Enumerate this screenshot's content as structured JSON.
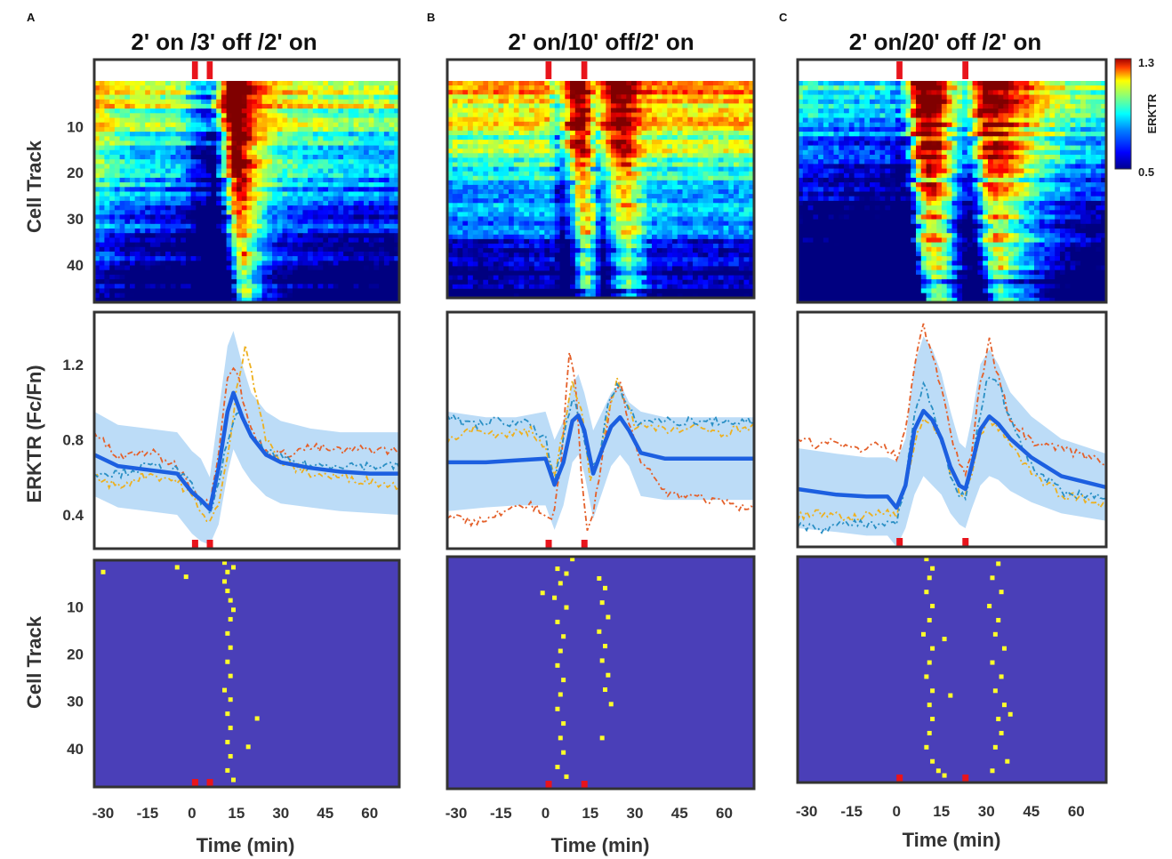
{
  "panel_letters": [
    "A",
    "B",
    "C"
  ],
  "colorbar": {
    "max_label": "1.3",
    "min_label": "0.5",
    "label": "ERKTR",
    "range": [
      0.5,
      1.3
    ]
  },
  "colors": {
    "pulse": "#e8141c",
    "mean": "#1c5fe0",
    "band": "#bcdcf7",
    "raster_bg": "#4a3fb8",
    "event": "#ffff2a",
    "trace_orange": "#e4602a",
    "trace_yellow": "#edb01f",
    "trace_blue": "#2a8fc4"
  },
  "y_labels": {
    "heatmap": "Cell Track",
    "mean": "ERKTR (Fc/Fn)",
    "raster": "Cell Track"
  },
  "x_label": "Time (min)",
  "x_tick_labels": [
    "-30",
    "-15",
    "0",
    "15",
    "30",
    "45",
    "60"
  ],
  "cell_tick_labels": [
    "10",
    "20",
    "30",
    "40"
  ],
  "erk_tick_labels": [
    "0.4",
    "0.8",
    "1.2"
  ],
  "chart_data": [
    {
      "type": "heatmap",
      "panel": "A",
      "title": "2' on /3' off /2' on",
      "xlim": [
        -33,
        70
      ],
      "cells_ylim": [
        0.5,
        48.5
      ],
      "erk_ylim": [
        0.22,
        1.48
      ],
      "pulses_min": [
        [
          0,
          2
        ],
        [
          5,
          7
        ]
      ],
      "heatmap": {
        "ylabel": "Cell Track",
        "n_cells": 48,
        "colorbar_range": [
          0.5,
          1.3
        ]
      },
      "mean_trace": {
        "ylabel": "ERKTR (Fc/Fn)",
        "x": [
          -33,
          -25,
          -15,
          -5,
          0,
          3,
          6,
          9,
          12,
          14,
          17,
          20,
          25,
          30,
          40,
          50,
          60,
          70
        ],
        "mean": [
          0.72,
          0.66,
          0.64,
          0.62,
          0.52,
          0.48,
          0.43,
          0.65,
          0.95,
          1.05,
          0.92,
          0.82,
          0.72,
          0.68,
          0.65,
          0.63,
          0.62,
          0.62
        ],
        "band_upper": [
          0.95,
          0.88,
          0.86,
          0.84,
          0.74,
          0.7,
          0.6,
          0.95,
          1.3,
          1.38,
          1.2,
          1.05,
          0.95,
          0.9,
          0.86,
          0.84,
          0.84,
          0.84
        ],
        "band_lower": [
          0.5,
          0.44,
          0.42,
          0.4,
          0.3,
          0.26,
          0.24,
          0.35,
          0.62,
          0.75,
          0.65,
          0.58,
          0.5,
          0.46,
          0.44,
          0.42,
          0.41,
          0.4
        ],
        "cell_traces": [
          {
            "color": "orange",
            "x": [
              -33,
              -25,
              -15,
              -5,
              0,
              3,
              6,
              9,
              12,
              15,
              18,
              21,
              25,
              30,
              40,
              50,
              60,
              70
            ],
            "y": [
              0.84,
              0.7,
              0.74,
              0.66,
              0.55,
              0.48,
              0.45,
              0.75,
              1.15,
              1.18,
              0.95,
              0.82,
              0.74,
              0.72,
              0.76,
              0.74,
              0.75,
              0.74
            ]
          },
          {
            "color": "yellow",
            "x": [
              -33,
              -25,
              -15,
              -5,
              0,
              3,
              6,
              9,
              12,
              15,
              18,
              21,
              25,
              30,
              40,
              50,
              60,
              70
            ],
            "y": [
              0.6,
              0.55,
              0.62,
              0.58,
              0.5,
              0.4,
              0.38,
              0.45,
              0.7,
              1.05,
              1.32,
              1.1,
              0.8,
              0.68,
              0.62,
              0.6,
              0.58,
              0.55
            ]
          },
          {
            "color": "blue",
            "x": [
              -33,
              -25,
              -15,
              -5,
              0,
              3,
              6,
              9,
              12,
              15,
              18,
              21,
              25,
              30,
              40,
              50,
              60,
              70
            ],
            "y": [
              0.63,
              0.62,
              0.66,
              0.64,
              0.55,
              0.47,
              0.43,
              0.55,
              0.8,
              0.95,
              0.88,
              0.8,
              0.74,
              0.7,
              0.66,
              0.67,
              0.66,
              0.66
            ]
          }
        ]
      },
      "raster": {
        "ylabel": "Cell Track",
        "events": [
          [
            -30,
            3
          ],
          [
            -5,
            2
          ],
          [
            -2,
            4
          ],
          [
            11,
            1
          ],
          [
            12,
            3
          ],
          [
            11,
            5
          ],
          [
            12,
            7
          ],
          [
            13,
            9
          ],
          [
            14,
            11
          ],
          [
            13,
            13
          ],
          [
            12,
            16
          ],
          [
            13,
            19
          ],
          [
            12,
            22
          ],
          [
            13,
            25
          ],
          [
            11,
            28
          ],
          [
            13,
            30
          ],
          [
            12,
            33
          ],
          [
            13,
            36
          ],
          [
            12,
            39
          ],
          [
            13,
            42
          ],
          [
            12,
            45
          ],
          [
            14,
            47
          ],
          [
            22,
            34
          ],
          [
            19,
            40
          ],
          [
            14,
            2
          ]
        ]
      }
    },
    {
      "type": "heatmap",
      "panel": "B",
      "title": "2' on/10' off/2' on",
      "xlim": [
        -33,
        70
      ],
      "cells_ylim": [
        0.5,
        48.5
      ],
      "erk_ylim": [
        0.22,
        1.48
      ],
      "pulses_min": [
        [
          0,
          2
        ],
        [
          12,
          14
        ]
      ],
      "heatmap": {
        "ylabel": "Cell Track",
        "n_cells": 48,
        "colorbar_range": [
          0.5,
          1.3
        ]
      },
      "mean_trace": {
        "ylabel": "ERKTR (Fc/Fn)",
        "x": [
          -33,
          -20,
          -10,
          0,
          3,
          6,
          9,
          11,
          13,
          16,
          19,
          22,
          25,
          28,
          32,
          40,
          50,
          60,
          70
        ],
        "mean": [
          0.68,
          0.68,
          0.69,
          0.7,
          0.56,
          0.68,
          0.9,
          0.93,
          0.85,
          0.62,
          0.75,
          0.87,
          0.92,
          0.85,
          0.73,
          0.7,
          0.7,
          0.7,
          0.7
        ],
        "band_upper": [
          0.95,
          0.92,
          0.92,
          0.95,
          0.8,
          0.9,
          1.1,
          1.15,
          1.05,
          0.85,
          0.95,
          1.05,
          1.1,
          1.0,
          0.95,
          0.92,
          0.92,
          0.92,
          0.92
        ],
        "band_lower": [
          0.42,
          0.44,
          0.45,
          0.45,
          0.32,
          0.45,
          0.68,
          0.72,
          0.62,
          0.38,
          0.52,
          0.66,
          0.72,
          0.66,
          0.5,
          0.48,
          0.48,
          0.48,
          0.48
        ],
        "cell_traces": [
          {
            "color": "orange",
            "x": [
              -33,
              -25,
              -15,
              -5,
              0,
              2,
              5,
              8,
              10,
              12,
              14,
              16,
              19,
              22,
              25,
              28,
              32,
              40,
              50,
              60,
              70
            ],
            "y": [
              0.4,
              0.36,
              0.42,
              0.45,
              0.4,
              0.36,
              0.62,
              1.28,
              1.1,
              0.62,
              0.3,
              0.4,
              0.7,
              1.0,
              1.1,
              0.9,
              0.7,
              0.52,
              0.5,
              0.46,
              0.42
            ]
          },
          {
            "color": "yellow",
            "x": [
              -33,
              -25,
              -15,
              -5,
              0,
              3,
              6,
              9,
              12,
              15,
              18,
              21,
              24,
              27,
              30,
              40,
              50,
              60,
              70
            ],
            "y": [
              0.8,
              0.86,
              0.82,
              0.85,
              0.75,
              0.6,
              0.85,
              1.1,
              0.95,
              0.6,
              0.7,
              0.95,
              1.12,
              1.0,
              0.88,
              0.85,
              0.86,
              0.84,
              0.88
            ]
          },
          {
            "color": "blue",
            "x": [
              -33,
              -25,
              -15,
              -5,
              0,
              3,
              6,
              9,
              12,
              15,
              18,
              21,
              24,
              27,
              30,
              40,
              50,
              60,
              70
            ],
            "y": [
              0.92,
              0.88,
              0.9,
              0.88,
              0.8,
              0.58,
              0.82,
              1.02,
              0.9,
              0.65,
              0.72,
              0.98,
              1.08,
              1.0,
              0.9,
              0.9,
              0.9,
              0.9,
              0.9
            ]
          }
        ]
      },
      "raster": {
        "ylabel": "Cell Track",
        "events": [
          [
            -1,
            8
          ],
          [
            4,
            3
          ],
          [
            7,
            4
          ],
          [
            5,
            6
          ],
          [
            3,
            9
          ],
          [
            7,
            11
          ],
          [
            4,
            14
          ],
          [
            6,
            17
          ],
          [
            5,
            20
          ],
          [
            4,
            23
          ],
          [
            6,
            26
          ],
          [
            5,
            29
          ],
          [
            4,
            32
          ],
          [
            6,
            35
          ],
          [
            5,
            38
          ],
          [
            6,
            41
          ],
          [
            4,
            44
          ],
          [
            7,
            46
          ],
          [
            18,
            5
          ],
          [
            20,
            7
          ],
          [
            19,
            10
          ],
          [
            21,
            13
          ],
          [
            18,
            16
          ],
          [
            20,
            19
          ],
          [
            19,
            22
          ],
          [
            21,
            25
          ],
          [
            20,
            28
          ],
          [
            22,
            31
          ],
          [
            19,
            38
          ],
          [
            9,
            1
          ]
        ]
      }
    },
    {
      "type": "heatmap",
      "panel": "C",
      "title": "2' on/20' off /2' on",
      "xlim": [
        -33,
        70
      ],
      "cells_ylim": [
        0.5,
        48.5
      ],
      "erk_ylim": [
        0.22,
        1.48
      ],
      "pulses_min": [
        [
          0,
          2
        ],
        [
          22,
          24
        ]
      ],
      "heatmap": {
        "ylabel": "Cell Track",
        "n_cells": 48,
        "colorbar_range": [
          0.5,
          1.3
        ]
      },
      "mean_trace": {
        "ylabel": "ERKTR (Fc/Fn)",
        "x": [
          -33,
          -20,
          -10,
          -3,
          0,
          3,
          6,
          9,
          12,
          15,
          18,
          21,
          23,
          25,
          28,
          31,
          34,
          38,
          45,
          55,
          70
        ],
        "mean": [
          0.53,
          0.5,
          0.49,
          0.49,
          0.43,
          0.55,
          0.85,
          0.95,
          0.9,
          0.8,
          0.65,
          0.55,
          0.53,
          0.65,
          0.85,
          0.92,
          0.88,
          0.8,
          0.7,
          0.6,
          0.54
        ],
        "band_upper": [
          0.75,
          0.72,
          0.7,
          0.7,
          0.68,
          0.8,
          1.2,
          1.35,
          1.28,
          1.15,
          0.95,
          0.78,
          0.75,
          0.9,
          1.2,
          1.28,
          1.2,
          1.05,
          0.92,
          0.8,
          0.72
        ],
        "band_lower": [
          0.32,
          0.3,
          0.28,
          0.28,
          0.22,
          0.32,
          0.5,
          0.6,
          0.55,
          0.5,
          0.4,
          0.34,
          0.32,
          0.42,
          0.55,
          0.6,
          0.58,
          0.52,
          0.46,
          0.4,
          0.36
        ],
        "cell_traces": [
          {
            "color": "orange",
            "x": [
              -33,
              -25,
              -20,
              -15,
              -5,
              0,
              3,
              6,
              9,
              12,
              15,
              18,
              21,
              23,
              25,
              28,
              31,
              34,
              38,
              45,
              55,
              70
            ],
            "y": [
              0.8,
              0.76,
              0.8,
              0.74,
              0.78,
              0.7,
              0.85,
              1.2,
              1.4,
              1.25,
              1.05,
              0.85,
              0.65,
              0.6,
              0.72,
              1.1,
              1.32,
              1.12,
              0.9,
              0.78,
              0.74,
              0.68
            ]
          },
          {
            "color": "yellow",
            "x": [
              -33,
              -25,
              -15,
              -5,
              0,
              3,
              6,
              9,
              12,
              15,
              18,
              21,
              23,
              25,
              28,
              31,
              34,
              38,
              45,
              55,
              70
            ],
            "y": [
              0.38,
              0.4,
              0.38,
              0.4,
              0.4,
              0.52,
              0.78,
              0.92,
              0.88,
              0.78,
              0.62,
              0.52,
              0.5,
              0.6,
              0.82,
              0.9,
              0.86,
              0.78,
              0.62,
              0.5,
              0.45
            ]
          },
          {
            "color": "blue",
            "x": [
              -33,
              -25,
              -15,
              -5,
              0,
              3,
              6,
              9,
              12,
              15,
              18,
              21,
              23,
              25,
              28,
              31,
              34,
              38,
              45,
              55,
              70
            ],
            "y": [
              0.34,
              0.32,
              0.35,
              0.33,
              0.34,
              0.55,
              0.95,
              1.1,
              0.95,
              0.8,
              0.6,
              0.5,
              0.5,
              0.65,
              0.95,
              1.15,
              1.1,
              0.9,
              0.65,
              0.52,
              0.48
            ]
          }
        ]
      },
      "raster": {
        "ylabel": "Cell Track",
        "events": [
          [
            10,
            1
          ],
          [
            12,
            3
          ],
          [
            11,
            5
          ],
          [
            10,
            8
          ],
          [
            12,
            11
          ],
          [
            11,
            14
          ],
          [
            9,
            17
          ],
          [
            12,
            20
          ],
          [
            11,
            23
          ],
          [
            10,
            26
          ],
          [
            12,
            29
          ],
          [
            11,
            32
          ],
          [
            12,
            35
          ],
          [
            11,
            38
          ],
          [
            10,
            41
          ],
          [
            12,
            44
          ],
          [
            14,
            46
          ],
          [
            16,
            47
          ],
          [
            34,
            2
          ],
          [
            32,
            5
          ],
          [
            35,
            8
          ],
          [
            31,
            11
          ],
          [
            34,
            14
          ],
          [
            33,
            17
          ],
          [
            36,
            20
          ],
          [
            32,
            23
          ],
          [
            35,
            26
          ],
          [
            33,
            29
          ],
          [
            36,
            32
          ],
          [
            34,
            35
          ],
          [
            35,
            38
          ],
          [
            33,
            41
          ],
          [
            37,
            44
          ],
          [
            32,
            46
          ],
          [
            16,
            18
          ],
          [
            18,
            30
          ],
          [
            38,
            34
          ]
        ]
      }
    }
  ]
}
